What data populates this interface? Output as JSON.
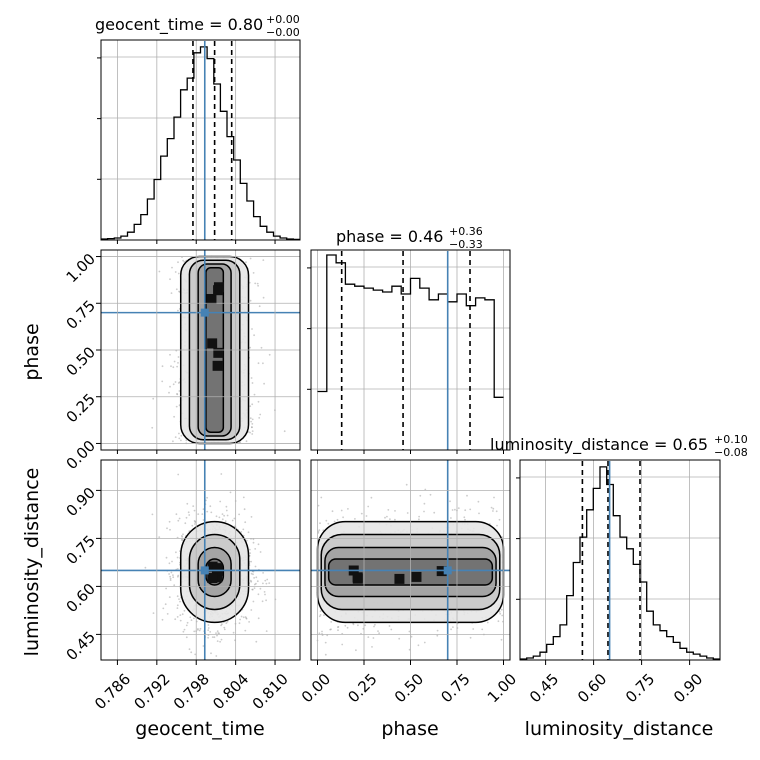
{
  "chart_data": {
    "type": "corner",
    "parameters": [
      "geocent_time",
      "phase",
      "luminosity_distance"
    ],
    "truths": {
      "geocent_time": 0.7993,
      "phase": 0.7,
      "luminosity_distance": 0.65
    },
    "axis_ranges": {
      "geocent_time": [
        0.7835,
        0.8138
      ],
      "phase": [
        -0.035,
        1.035
      ],
      "luminosity_distance": [
        0.37,
        0.995
      ]
    },
    "ticks": {
      "geocent_time": {
        "values": [
          0.786,
          0.792,
          0.798,
          0.804,
          0.81
        ],
        "labels": [
          "0.786",
          "0.792",
          "0.798",
          "0.804",
          "0.810"
        ]
      },
      "phase": {
        "values": [
          0.0,
          0.25,
          0.5,
          0.75,
          1.0
        ],
        "labels": [
          "0.00",
          "0.25",
          "0.50",
          "0.75",
          "1.00"
        ]
      },
      "luminosity_distance": {
        "values": [
          0.45,
          0.6,
          0.75,
          0.9
        ],
        "labels": [
          "0.45",
          "0.60",
          "0.75",
          "0.90"
        ]
      }
    },
    "titles": [
      {
        "parameter": "geocent_time",
        "label": "geocent_time = 0.80",
        "plus": "+0.00",
        "minus": "−0.00"
      },
      {
        "parameter": "phase",
        "label": "phase = 0.46",
        "plus": "+0.36",
        "minus": "−0.33"
      },
      {
        "parameter": "luminosity_distance",
        "label": "luminosity_distance = 0.65",
        "plus": "+0.10",
        "minus": "−0.08"
      }
    ],
    "quantiles": {
      "geocent_time": [
        0.7975,
        0.8008,
        0.8034
      ],
      "phase": [
        0.13,
        0.46,
        0.82
      ],
      "luminosity_distance": [
        0.565,
        0.645,
        0.745
      ]
    },
    "histograms": {
      "geocent_time": {
        "edges": [
          0.7835,
          0.78451,
          0.78552,
          0.78653,
          0.78754,
          0.78855,
          0.78956,
          0.79057,
          0.79158,
          0.79259,
          0.7936,
          0.79461,
          0.79562,
          0.79663,
          0.79764,
          0.79865,
          0.79966,
          0.80067,
          0.80168,
          0.80269,
          0.8037,
          0.80471,
          0.80572,
          0.80673,
          0.80774,
          0.80875,
          0.80976,
          0.81077,
          0.81178,
          0.81279,
          0.8138
        ],
        "counts": [
          0.005,
          0.007,
          0.01,
          0.02,
          0.04,
          0.08,
          0.13,
          0.21,
          0.31,
          0.43,
          0.52,
          0.63,
          0.77,
          0.83,
          0.96,
          0.99,
          0.93,
          0.8,
          0.66,
          0.53,
          0.41,
          0.29,
          0.2,
          0.12,
          0.07,
          0.04,
          0.02,
          0.01,
          0.005,
          0.003
        ]
      },
      "phase": {
        "edges": [
          0.0,
          0.05,
          0.1,
          0.15,
          0.2,
          0.25,
          0.3,
          0.35,
          0.4,
          0.45,
          0.5,
          0.55,
          0.6,
          0.65,
          0.7,
          0.75,
          0.8,
          0.85,
          0.9,
          0.95,
          1.0
        ],
        "counts": [
          0.3,
          1.0,
          0.96,
          0.85,
          0.84,
          0.83,
          0.82,
          0.81,
          0.84,
          0.8,
          0.88,
          0.83,
          0.77,
          0.8,
          0.76,
          0.8,
          0.74,
          0.78,
          0.77,
          0.27
        ]
      },
      "luminosity_distance": {
        "edges": [
          0.37,
          0.3908,
          0.4117,
          0.4325,
          0.4533,
          0.4742,
          0.495,
          0.5158,
          0.5367,
          0.5575,
          0.5783,
          0.5992,
          0.62,
          0.6408,
          0.6617,
          0.6825,
          0.7033,
          0.7242,
          0.745,
          0.7658,
          0.7867,
          0.8075,
          0.8283,
          0.8492,
          0.87,
          0.8908,
          0.9117,
          0.9325,
          0.9533,
          0.9742,
          0.995
        ],
        "counts": [
          0.005,
          0.01,
          0.02,
          0.04,
          0.08,
          0.12,
          0.18,
          0.33,
          0.5,
          0.63,
          0.77,
          0.88,
          0.99,
          0.9,
          0.74,
          0.63,
          0.57,
          0.49,
          0.4,
          0.25,
          0.18,
          0.15,
          0.12,
          0.09,
          0.06,
          0.04,
          0.03,
          0.02,
          0.01,
          0.005
        ]
      }
    },
    "grid": true
  }
}
